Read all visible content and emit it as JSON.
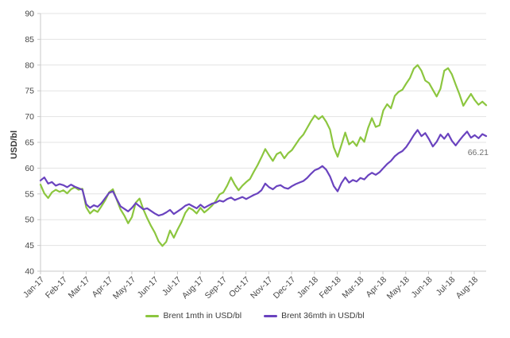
{
  "chart_data": {
    "type": "line",
    "title": "",
    "xlabel": "",
    "ylabel": "USD/bl",
    "ylim": [
      40,
      90
    ],
    "ytick_step": 5,
    "grid": true,
    "legend_position": "bottom",
    "categories": [
      "Jan-17",
      "Feb-17",
      "Mar-17",
      "Apr-17",
      "May-17",
      "Jun-17",
      "Jul-17",
      "Aug-17",
      "Sep-17",
      "Oct-17",
      "Nov-17",
      "Dec-17",
      "Jan-18",
      "Feb-18",
      "Mar-18",
      "Apr-18",
      "May-18",
      "Jun-18",
      "Jul-18",
      "Aug-18"
    ],
    "series": [
      {
        "name": "Brent 1mth in USD/bl",
        "color": "#8CC63F",
        "values": [
          56.8,
          55.1,
          54.2,
          55.3,
          55.8,
          55.4,
          55.7,
          55.1,
          55.9,
          56.3,
          55.8,
          56.0,
          52.4,
          51.2,
          51.9,
          51.5,
          52.6,
          53.8,
          55.3,
          55.9,
          53.9,
          52.0,
          50.8,
          49.3,
          50.5,
          53.3,
          54.1,
          52.0,
          50.3,
          48.8,
          47.5,
          45.8,
          44.9,
          45.7,
          47.9,
          46.5,
          48.1,
          49.5,
          51.3,
          52.3,
          51.9,
          51.2,
          52.3,
          51.4,
          52.0,
          52.7,
          53.6,
          54.9,
          55.3,
          56.6,
          58.2,
          56.8,
          55.7,
          56.6,
          57.3,
          57.9,
          59.3,
          60.6,
          62.1,
          63.7,
          62.5,
          61.4,
          62.7,
          63.1,
          61.9,
          62.9,
          63.5,
          64.6,
          65.7,
          66.5,
          67.8,
          69.1,
          70.2,
          69.5,
          70.1,
          69.0,
          67.5,
          64.0,
          62.2,
          64.5,
          66.9,
          64.6,
          65.2,
          64.3,
          66.0,
          65.1,
          67.8,
          69.7,
          68.0,
          68.3,
          71.2,
          72.4,
          71.6,
          74.0,
          74.8,
          75.2,
          76.4,
          77.5,
          79.3,
          80.0,
          78.9,
          77.0,
          76.5,
          75.2,
          73.9,
          75.4,
          78.9,
          79.4,
          78.2,
          76.2,
          74.3,
          72.1,
          73.3,
          74.4,
          73.2,
          72.3,
          72.9,
          72.2
        ]
      },
      {
        "name": "Brent 36mth in USD/bl",
        "color": "#6A43BF",
        "values": [
          57.6,
          58.2,
          57.0,
          57.3,
          56.6,
          56.9,
          56.7,
          56.3,
          56.8,
          56.4,
          56.1,
          55.8,
          53.0,
          52.3,
          52.8,
          52.5,
          53.2,
          54.2,
          55.2,
          55.5,
          54.0,
          52.6,
          52.1,
          51.6,
          52.3,
          53.2,
          52.6,
          52.0,
          52.2,
          51.7,
          51.2,
          50.8,
          51.0,
          51.4,
          51.9,
          51.1,
          51.6,
          52.1,
          52.7,
          53.0,
          52.6,
          52.2,
          52.9,
          52.3,
          52.7,
          53.1,
          53.3,
          53.7,
          53.5,
          54.0,
          54.3,
          53.8,
          54.1,
          54.4,
          54.0,
          54.4,
          54.8,
          55.1,
          55.7,
          57.0,
          56.3,
          55.9,
          56.5,
          56.7,
          56.2,
          56.0,
          56.5,
          56.9,
          57.2,
          57.5,
          58.1,
          58.9,
          59.6,
          59.9,
          60.4,
          59.7,
          58.4,
          56.5,
          55.5,
          57.1,
          58.2,
          57.2,
          57.7,
          57.4,
          58.1,
          57.8,
          58.6,
          59.1,
          58.7,
          59.2,
          60.0,
          60.8,
          61.4,
          62.3,
          62.9,
          63.3,
          64.1,
          65.2,
          66.4,
          67.4,
          66.2,
          66.8,
          65.6,
          64.2,
          65.1,
          66.5,
          65.7,
          66.7,
          65.3,
          64.4,
          65.4,
          66.3,
          67.1,
          65.9,
          66.4,
          65.8,
          66.6,
          66.21
        ]
      }
    ],
    "annotation": {
      "text": "66.21",
      "attached_to": "Brent 36mth in USD/bl"
    }
  },
  "style_colors": {
    "gridline": "#e3e3e3",
    "axis": "#c9c9c9",
    "tick_label": "#474747",
    "annotation": "#6e6e6e"
  }
}
